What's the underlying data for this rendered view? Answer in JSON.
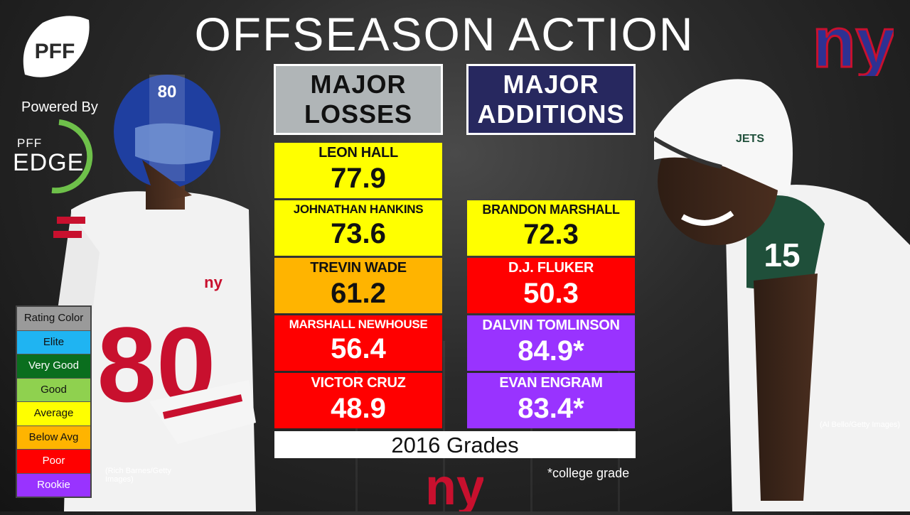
{
  "title": "OFFSEASON ACTION",
  "branding": {
    "pff_logo_text": "PFF",
    "powered_by": "Powered By",
    "edge_small": "PFF",
    "edge_word": "EDGE",
    "team_logo": "ny"
  },
  "columns": {
    "losses_header": [
      "MAJOR",
      "LOSSES"
    ],
    "additions_header": [
      "MAJOR",
      "ADDITIONS"
    ]
  },
  "losses": [
    {
      "name": "LEON HALL",
      "grade": "77.9",
      "color": "#ffff00"
    },
    {
      "name": "JOHNATHAN HANKINS",
      "grade": "73.6",
      "color": "#ffff00"
    },
    {
      "name": "TREVIN WADE",
      "grade": "61.2",
      "color": "#ffb400"
    },
    {
      "name": "MARSHALL NEWHOUSE",
      "grade": "56.4",
      "color": "#ff0000"
    },
    {
      "name": "VICTOR CRUZ",
      "grade": "48.9",
      "color": "#ff0000"
    }
  ],
  "additions": [
    {
      "name": "BRANDON MARSHALL",
      "grade": "72.3",
      "color": "#ffff00"
    },
    {
      "name": "D.J. FLUKER",
      "grade": "50.3",
      "color": "#ff0000"
    },
    {
      "name": "DALVIN TOMLINSON",
      "grade": "84.9*",
      "color": "#9933ff"
    },
    {
      "name": "EVAN ENGRAM",
      "grade": "83.4*",
      "color": "#9933ff"
    }
  ],
  "footer": {
    "grades_label": "2016 Grades",
    "college_note": "*college grade"
  },
  "legend": [
    {
      "label": "Rating Color",
      "color": "#9a9a9a"
    },
    {
      "label": "Elite",
      "color": "#1fb4f2"
    },
    {
      "label": "Very Good",
      "color": "#0a6e1e"
    },
    {
      "label": "Good",
      "color": "#8fd14f"
    },
    {
      "label": "Average",
      "color": "#ffff00"
    },
    {
      "label": "Below Avg",
      "color": "#ffb400"
    },
    {
      "label": "Poor",
      "color": "#ff0000"
    },
    {
      "label": "Rookie",
      "color": "#9933ff"
    }
  ],
  "credits": {
    "left": "(Rich Barnes/Getty Images)",
    "right": "(Al Bello/Getty Images)"
  },
  "jerseys": {
    "left_number": "80",
    "right_number": "15",
    "helmet_text": "JETS"
  }
}
